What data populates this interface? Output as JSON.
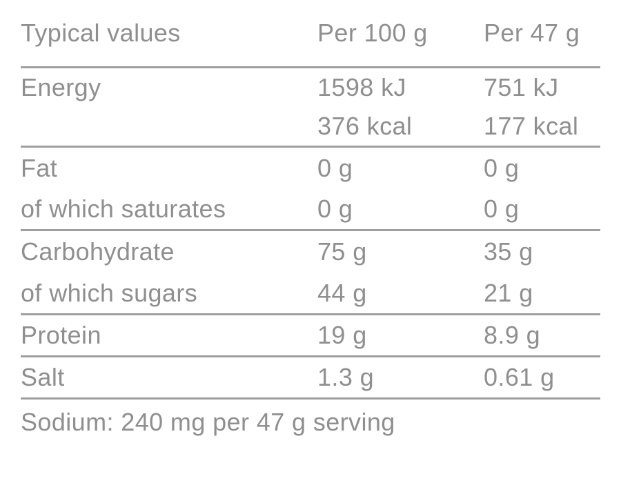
{
  "colors": {
    "text": "#8f8f8f",
    "rule": "#9e9e9e",
    "background": "#ffffff"
  },
  "table": {
    "header": {
      "col_label": "Typical values",
      "col_per100": "Per 100 g",
      "col_per47": "Per 47 g"
    },
    "rows": [
      {
        "label": "Energy",
        "per100": [
          "1598 kJ",
          "376 kcal"
        ],
        "per47": [
          "751 kJ",
          "177 kcal"
        ]
      },
      {
        "label": "Fat",
        "per100": "0 g",
        "per47": "0 g"
      },
      {
        "label": "of which saturates",
        "per100": "0 g",
        "per47": "0 g"
      },
      {
        "label": "Carbohydrate",
        "per100": "75 g",
        "per47": "35 g"
      },
      {
        "label": "of which sugars",
        "per100": "44 g",
        "per47": "21 g"
      },
      {
        "label": "Protein",
        "per100": "19 g",
        "per47": "8.9 g"
      },
      {
        "label": "Salt",
        "per100": "1.3 g",
        "per47": "0.61 g"
      }
    ],
    "footnote": "Sodium: 240 mg per 47 g serving"
  }
}
